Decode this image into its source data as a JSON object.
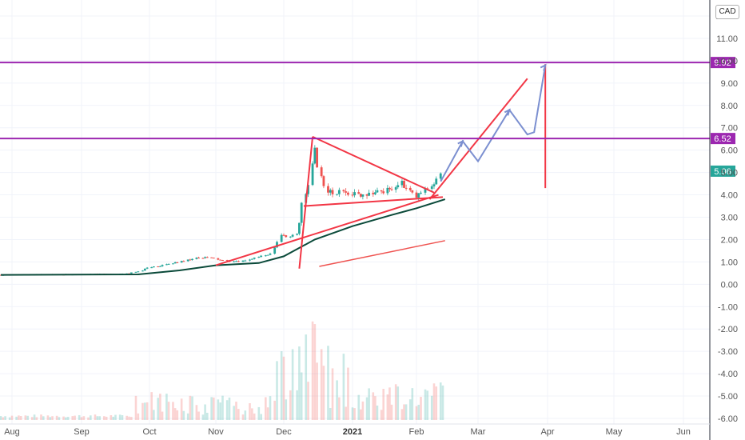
{
  "currency_button": "CAD",
  "chart_data": {
    "type": "candlestick",
    "currency": "CAD",
    "y_axis": {
      "min": -6,
      "max": 12,
      "ticks": [
        "12.00",
        "11.00",
        "10.00",
        "9.00",
        "8.00",
        "7.00",
        "6.00",
        "5.00",
        "4.00",
        "3.00",
        "2.00",
        "1.00",
        "0.00",
        "-1.00",
        "-2.00",
        "-3.00",
        "-4.00",
        "-5.00",
        "-6.00"
      ],
      "tick_values": [
        12,
        11,
        10,
        9,
        8,
        7,
        6,
        5,
        4,
        3,
        2,
        1,
        0,
        -1,
        -2,
        -3,
        -4,
        -5,
        -6
      ],
      "position": "right"
    },
    "x_axis": {
      "labels": [
        "Aug",
        "Sep",
        "Oct",
        "Nov",
        "Dec",
        "2021",
        "Feb",
        "Mar",
        "Apr",
        "May",
        "Jun"
      ],
      "label_dates": [
        "2020-08-01",
        "2020-09-01",
        "2020-10-01",
        "2020-11-01",
        "2020-12-01",
        "2021-01-01",
        "2021-02-01",
        "2021-03-01",
        "2021-04-01",
        "2021-05-01",
        "2021-06-01"
      ],
      "bold_labels": [
        "2021"
      ]
    },
    "horizontal_levels": [
      {
        "value": 9.92,
        "label": "9.92",
        "color": "#9c27b0"
      },
      {
        "value": 6.52,
        "label": "6.52",
        "color": "#9c27b0"
      }
    ],
    "last_price": {
      "value": 5.06,
      "label": "5.06",
      "color": "#26a69a"
    },
    "price_path": [
      [
        "2020-07-27",
        0.42
      ],
      [
        "2020-08-15",
        0.44
      ],
      [
        "2020-09-01",
        0.45
      ],
      [
        "2020-09-20",
        0.46
      ],
      [
        "2020-09-26",
        0.55
      ],
      [
        "2020-10-01",
        0.75
      ],
      [
        "2020-10-08",
        0.85
      ],
      [
        "2020-10-15",
        1.0
      ],
      [
        "2020-10-22",
        1.15
      ],
      [
        "2020-10-29",
        1.2
      ],
      [
        "2020-11-05",
        1.05
      ],
      [
        "2020-11-12",
        1.0
      ],
      [
        "2020-11-19",
        1.2
      ],
      [
        "2020-11-26",
        1.35
      ],
      [
        "2020-11-30",
        2.2
      ],
      [
        "2020-12-03",
        2.1
      ],
      [
        "2020-12-07",
        2.3
      ],
      [
        "2020-12-09",
        3.0
      ],
      [
        "2020-12-10",
        3.7
      ],
      [
        "2020-12-13",
        4.5
      ],
      [
        "2020-12-15",
        6.2
      ],
      [
        "2020-12-17",
        5.0
      ],
      [
        "2020-12-20",
        4.3
      ],
      [
        "2020-12-24",
        4.0
      ],
      [
        "2020-12-28",
        4.2
      ],
      [
        "2021-01-04",
        4.0
      ],
      [
        "2021-01-11",
        4.1
      ],
      [
        "2021-01-18",
        4.2
      ],
      [
        "2021-01-25",
        4.5
      ],
      [
        "2021-02-01",
        3.9
      ],
      [
        "2021-02-05",
        4.2
      ],
      [
        "2021-02-10",
        4.6
      ],
      [
        "2021-02-13",
        5.06
      ]
    ],
    "moving_average_1": [
      [
        "2020-07-27",
        0.42
      ],
      [
        "2020-09-26",
        0.44
      ],
      [
        "2020-10-15",
        0.62
      ],
      [
        "2020-11-01",
        0.85
      ],
      [
        "2020-11-20",
        0.95
      ],
      [
        "2020-12-01",
        1.25
      ],
      [
        "2020-12-15",
        2.0
      ],
      [
        "2021-01-01",
        2.6
      ],
      [
        "2021-01-20",
        3.1
      ],
      [
        "2021-02-01",
        3.4
      ],
      [
        "2021-02-14",
        3.8
      ]
    ],
    "moving_average_2": [
      [
        "2020-12-17",
        0.8
      ],
      [
        "2021-02-14",
        1.95
      ]
    ],
    "volume_bars": "present (light green/red histogram in lower pane)",
    "drawings": {
      "red_triangle_lines": true,
      "blue_zigzag_projection": true,
      "red_projection_line": true
    }
  }
}
